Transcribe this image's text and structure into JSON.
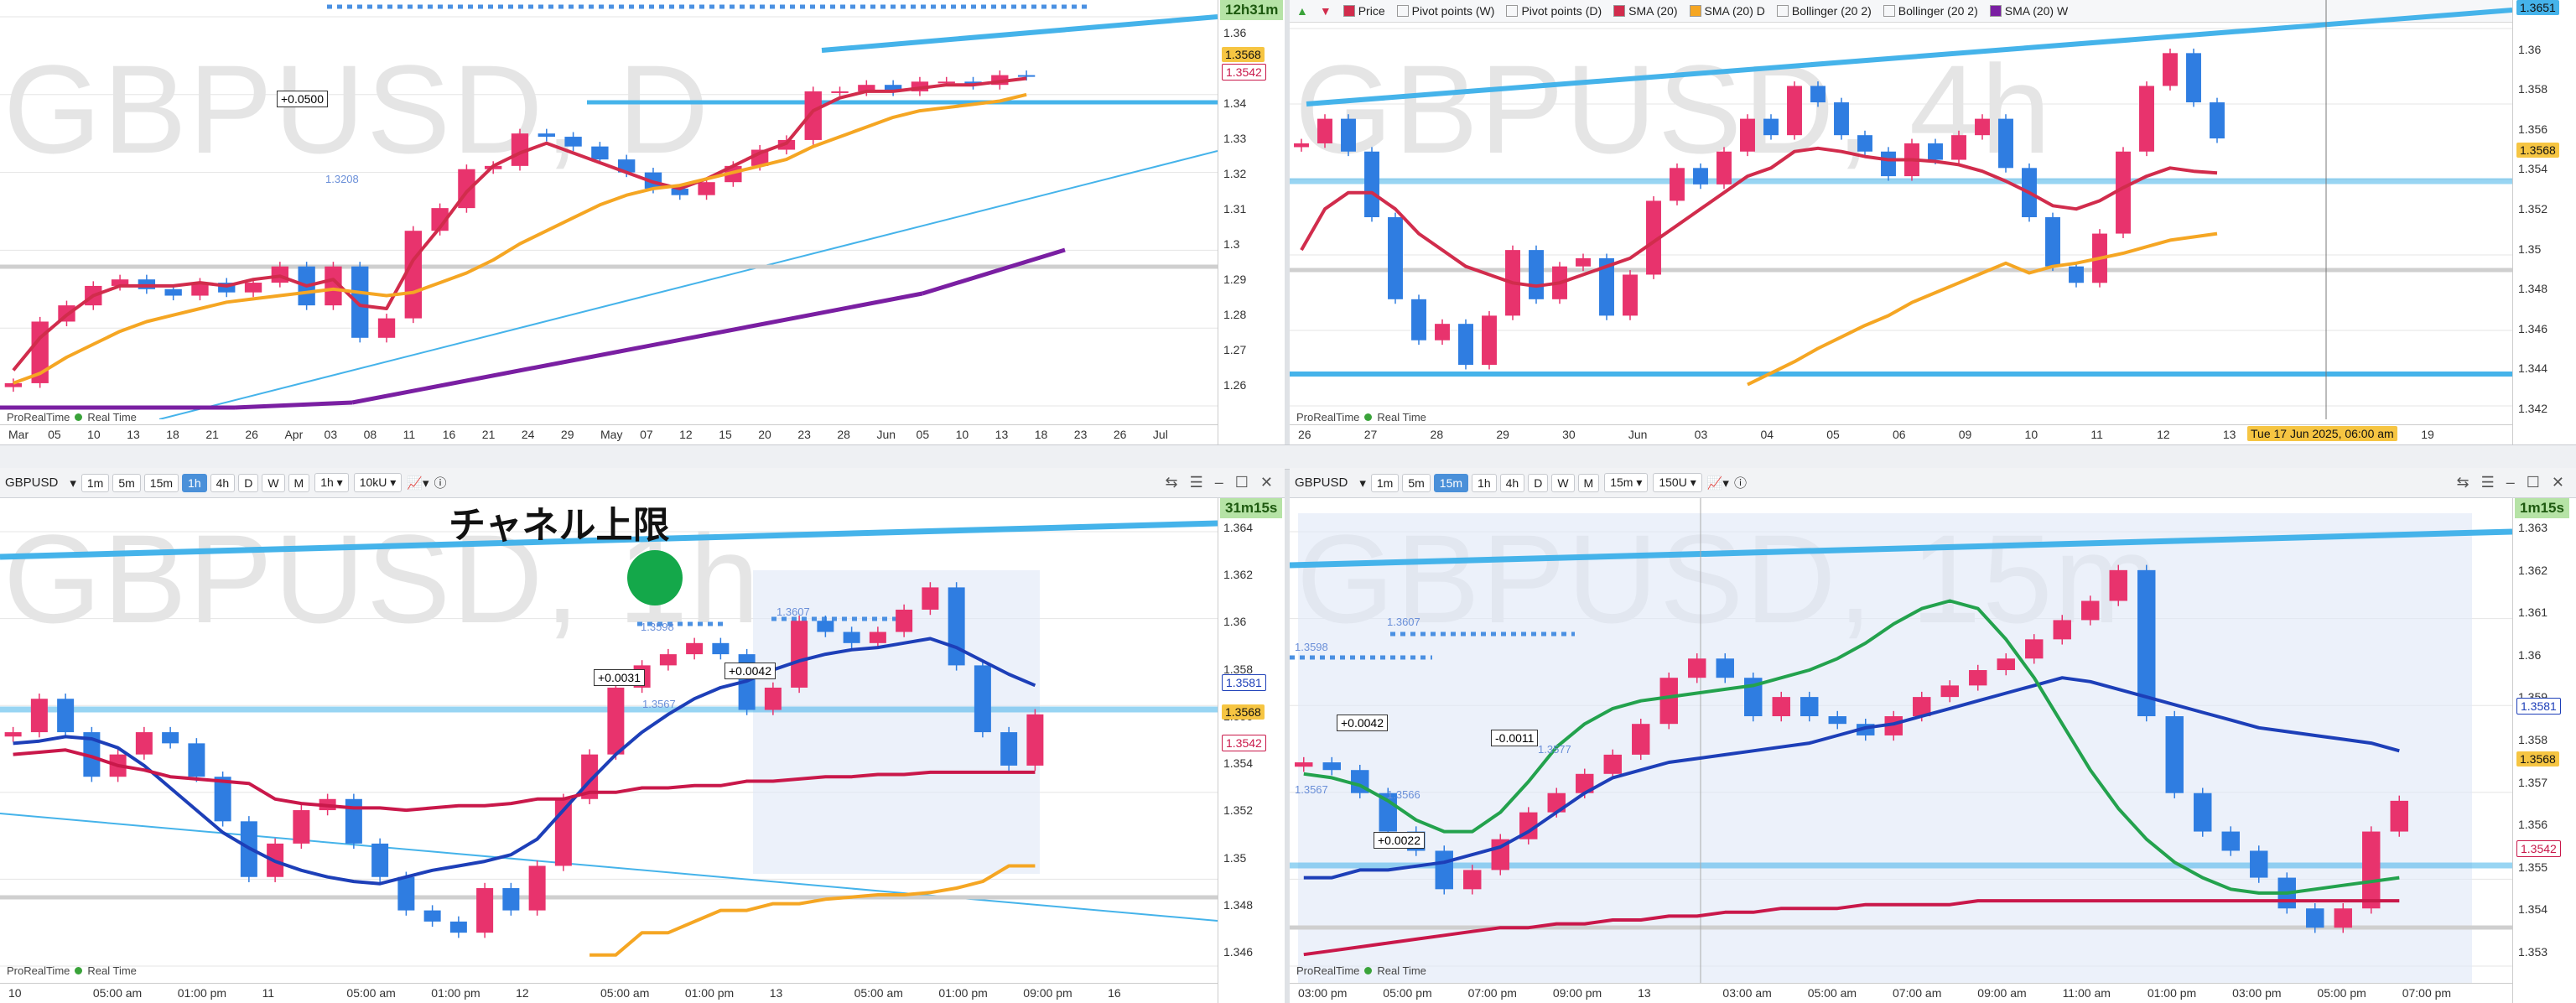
{
  "colors": {
    "up": "#e8336d",
    "down": "#2f7de1",
    "sma_red": "#d12c4c",
    "sma_orange": "#f5a623",
    "purple": "#7a1fa2",
    "trend": "#45b3ea",
    "navy": "#1d3fb8",
    "green": "#23a24d",
    "crimson": "#c9184a"
  },
  "panels": {
    "tl": {
      "watermark": "GBPUSD, D",
      "timer": "12h31m",
      "price_badges": [
        "1.3568",
        "1.3542"
      ],
      "yticks": [
        "1.36",
        "1.35",
        "1.34",
        "1.33",
        "1.32",
        "1.31",
        "1.3",
        "1.29",
        "1.28",
        "1.27",
        "1.26"
      ],
      "xticks": [
        "Mar",
        "05",
        "10",
        "13",
        "18",
        "21",
        "26",
        "Apr",
        "03",
        "08",
        "11",
        "16",
        "21",
        "24",
        "29",
        "May",
        "07",
        "12",
        "15",
        "20",
        "23",
        "28",
        "Jun",
        "05",
        "10",
        "13",
        "18",
        "23",
        "26",
        "Jul"
      ],
      "annotation": "+0.0500",
      "level_label": "1.3208",
      "footer": "ProRealTime",
      "footer_rt": "Real Time"
    },
    "tr": {
      "watermark": "GBPUSD, 4h",
      "legend": [
        "Price",
        "Pivot points (W)",
        "Pivot points (D)",
        "SMA (20)",
        "SMA (20) D",
        "Bollinger (20 2)",
        "Bollinger (20 2)",
        "SMA (20) W"
      ],
      "price_badges": [
        "1.3651",
        "1.3568"
      ],
      "yticks": [
        "1.362",
        "1.36",
        "1.358",
        "1.356",
        "1.354",
        "1.352",
        "1.35",
        "1.348",
        "1.346",
        "1.344",
        "1.342"
      ],
      "xticks": [
        "26",
        "27",
        "28",
        "29",
        "30",
        "Jun",
        "03",
        "04",
        "05",
        "06",
        "09",
        "10",
        "11",
        "12",
        "13",
        "17",
        "18",
        "19"
      ],
      "cursor_label": "Tue 17 Jun 2025, 06:00 am",
      "footer": "ProRealTime",
      "footer_rt": "Real Time"
    },
    "bl": {
      "symbol": "GBPUSD",
      "timeframes": [
        "1m",
        "5m",
        "15m",
        "1h",
        "4h",
        "D",
        "W",
        "M"
      ],
      "active_tf": "1h",
      "tf_select": "1h",
      "units_select": "10kU",
      "watermark": "GBPUSD, 1h",
      "timer": "31m15s",
      "price_badges": [
        "1.3581",
        "1.3568",
        "1.3542"
      ],
      "yticks": [
        "1.364",
        "1.362",
        "1.36",
        "1.358",
        "1.356",
        "1.354",
        "1.352",
        "1.35",
        "1.348",
        "1.346"
      ],
      "xticks": [
        "10",
        "05:00 am",
        "01:00 pm",
        "11",
        "05:00 am",
        "01:00 pm",
        "12",
        "05:00 am",
        "01:00 pm",
        "13",
        "05:00 am",
        "01:00 pm",
        "09:00 pm",
        "16"
      ],
      "annotations": [
        "+0.0031",
        "+0.0042"
      ],
      "level_labels": [
        "1.3607",
        "1.3598",
        "1.3567"
      ],
      "jp_label": "チャネル上限",
      "footer": "ProRealTime",
      "footer_rt": "Real Time"
    },
    "br": {
      "symbol": "GBPUSD",
      "timeframes": [
        "1m",
        "5m",
        "15m",
        "1h",
        "4h",
        "D",
        "W",
        "M"
      ],
      "active_tf": "15m",
      "tf_select": "15m",
      "units_select": "150U",
      "watermark": "GBPUSD, 15m",
      "timer": "1m15s",
      "price_badges": [
        "1.3581",
        "1.3568",
        "1.3542"
      ],
      "yticks": [
        "1.363",
        "1.362",
        "1.361",
        "1.36",
        "1.359",
        "1.358",
        "1.357",
        "1.356",
        "1.355",
        "1.354",
        "1.353"
      ],
      "xticks": [
        "03:00 pm",
        "05:00 pm",
        "07:00 pm",
        "09:00 pm",
        "13",
        "03:00 am",
        "05:00 am",
        "07:00 am",
        "09:00 am",
        "11:00 am",
        "01:00 pm",
        "03:00 pm",
        "05:00 pm",
        "07:00 pm"
      ],
      "annotations": [
        "+0.0042",
        "-0.0011",
        "+0.0022"
      ],
      "level_labels": [
        "1.3607",
        "1.3598",
        "1.3567",
        "1.3566",
        "1.3577"
      ],
      "footer": "ProRealTime",
      "footer_rt": "Real Time"
    }
  },
  "chart_data": [
    {
      "type": "candlestick",
      "title": "GBPUSD, D",
      "ylim": [
        1.255,
        1.375
      ],
      "close_path": [
        1.262,
        1.281,
        1.286,
        1.292,
        1.294,
        1.291,
        1.289,
        1.293,
        1.29,
        1.293,
        1.298,
        1.286,
        1.298,
        1.276,
        1.282,
        1.309,
        1.316,
        1.328,
        1.329,
        1.339,
        1.338,
        1.335,
        1.331,
        1.327,
        1.322,
        1.32,
        1.324,
        1.329,
        1.334,
        1.337,
        1.352,
        1.352,
        1.354,
        1.352,
        1.355,
        1.355,
        1.354,
        1.357,
        1.3568
      ],
      "series": [
        {
          "name": "SMA (20)",
          "values": [
            1.266,
            1.276,
            1.283,
            1.289,
            1.292,
            1.292,
            1.292,
            1.293,
            1.292,
            1.294,
            1.295,
            1.292,
            1.294,
            1.286,
            1.285,
            1.3,
            1.31,
            1.321,
            1.329,
            1.333,
            1.336,
            1.333,
            1.33,
            1.327,
            1.324,
            1.322,
            1.325,
            1.329,
            1.333,
            1.336,
            1.346,
            1.35,
            1.352,
            1.352,
            1.353,
            1.354,
            1.354,
            1.355,
            1.356
          ]
        },
        {
          "name": "SMA (20) D",
          "values": [
            1.262,
            1.265,
            1.27,
            1.274,
            1.278,
            1.281,
            1.283,
            1.285,
            1.287,
            1.288,
            1.289,
            1.29,
            1.291,
            1.29,
            1.289,
            1.29,
            1.293,
            1.296,
            1.3,
            1.305,
            1.309,
            1.313,
            1.317,
            1.32,
            1.322,
            1.323,
            1.325,
            1.327,
            1.329,
            1.331,
            1.335,
            1.338,
            1.341,
            1.344,
            1.346,
            1.347,
            1.348,
            1.349,
            1.351
          ]
        }
      ]
    },
    {
      "type": "candlestick",
      "title": "GBPUSD, 4h",
      "ylim": [
        1.3405,
        1.3635
      ],
      "close_path": [
        1.3565,
        1.358,
        1.356,
        1.352,
        1.347,
        1.3445,
        1.3455,
        1.343,
        1.346,
        1.35,
        1.347,
        1.349,
        1.3495,
        1.346,
        1.3485,
        1.353,
        1.355,
        1.354,
        1.356,
        1.358,
        1.357,
        1.36,
        1.359,
        1.357,
        1.356,
        1.3545,
        1.3565,
        1.3555,
        1.357,
        1.358,
        1.355,
        1.352,
        1.349,
        1.348,
        1.351,
        1.356,
        1.36,
        1.362,
        1.359,
        1.3568
      ],
      "series": [
        {
          "name": "SMA (20)",
          "values": [
            1.35,
            1.3525,
            1.3535,
            1.3535,
            1.3525,
            1.351,
            1.35,
            1.349,
            1.3485,
            1.348,
            1.3478,
            1.348,
            1.3485,
            1.349,
            1.3495,
            1.3505,
            1.3515,
            1.3525,
            1.3535,
            1.3545,
            1.355,
            1.356,
            1.3562,
            1.356,
            1.3557,
            1.3555,
            1.3555,
            1.3554,
            1.3552,
            1.3548,
            1.3542,
            1.3535,
            1.3527,
            1.3525,
            1.353,
            1.3538,
            1.3545,
            1.355,
            1.3548,
            1.3547
          ]
        },
        {
          "name": "SMA (20) W",
          "values": [
            null,
            null,
            null,
            null,
            null,
            null,
            null,
            null,
            null,
            null,
            null,
            null,
            null,
            null,
            null,
            null,
            null,
            null,
            null,
            1.3418,
            1.3425,
            1.3432,
            1.344,
            1.3447,
            1.3454,
            1.346,
            1.3468,
            1.3474,
            1.348,
            1.3486,
            1.3492,
            1.3486,
            1.349,
            1.3492,
            1.3495,
            1.3498,
            1.3502,
            1.3506,
            1.3508,
            1.351
          ]
        }
      ]
    },
    {
      "type": "candlestick",
      "title": "GBPUSD, 1h",
      "ylim": [
        1.3455,
        1.365
      ],
      "close_path": [
        1.356,
        1.3575,
        1.356,
        1.354,
        1.355,
        1.356,
        1.3555,
        1.354,
        1.352,
        1.3495,
        1.351,
        1.3525,
        1.353,
        1.351,
        1.3495,
        1.348,
        1.3475,
        1.347,
        1.349,
        1.348,
        1.35,
        1.353,
        1.355,
        1.358,
        1.359,
        1.3595,
        1.36,
        1.3595,
        1.357,
        1.358,
        1.361,
        1.3605,
        1.36,
        1.3605,
        1.3615,
        1.3625,
        1.359,
        1.356,
        1.3545,
        1.3568
      ],
      "series": [
        {
          "name": "SMA (20)",
          "values": [
            1.3555,
            1.3556,
            1.3558,
            1.3557,
            1.3553,
            1.3545,
            1.3535,
            1.3525,
            1.3515,
            1.3508,
            1.3502,
            1.3498,
            1.3495,
            1.3493,
            1.3492,
            1.3495,
            1.3498,
            1.35,
            1.3502,
            1.3505,
            1.3512,
            1.3525,
            1.3538,
            1.355,
            1.356,
            1.3568,
            1.3575,
            1.358,
            1.3583,
            1.3588,
            1.3592,
            1.3595,
            1.3597,
            1.3598,
            1.36,
            1.3602,
            1.3598,
            1.3592,
            1.3586,
            1.3581
          ]
        },
        {
          "name": "SMA (20) D",
          "values": [
            1.355,
            1.3551,
            1.3552,
            1.3549,
            1.3545,
            1.3543,
            1.354,
            1.3539,
            1.3538,
            1.3537,
            1.353,
            1.3528,
            1.3527,
            1.3526,
            1.3526,
            1.3525,
            1.3526,
            1.3527,
            1.3527,
            1.3528,
            1.353,
            1.353,
            1.3533,
            1.3533,
            1.3535,
            1.3535,
            1.3536,
            1.3536,
            1.3538,
            1.3538,
            1.3539,
            1.354,
            1.354,
            1.3541,
            1.3541,
            1.3542,
            1.3542,
            1.3542,
            1.3542,
            1.3542
          ]
        },
        {
          "name": "SMA (20) W",
          "values": [
            null,
            null,
            null,
            null,
            null,
            null,
            null,
            null,
            null,
            null,
            null,
            null,
            null,
            null,
            null,
            null,
            null,
            null,
            null,
            null,
            null,
            null,
            1.346,
            1.346,
            1.347,
            1.347,
            1.3475,
            1.348,
            1.348,
            1.3483,
            1.3483,
            1.3485,
            1.3486,
            1.3487,
            1.3487,
            1.3488,
            1.349,
            1.3493,
            1.35,
            1.35
          ]
        }
      ]
    },
    {
      "type": "candlestick",
      "title": "GBPUSD, 15m",
      "ylim": [
        1.3525,
        1.3638
      ],
      "close_path": [
        1.3578,
        1.3576,
        1.357,
        1.356,
        1.3555,
        1.3545,
        1.355,
        1.3558,
        1.3565,
        1.357,
        1.3575,
        1.358,
        1.3588,
        1.36,
        1.3605,
        1.36,
        1.359,
        1.3595,
        1.359,
        1.3588,
        1.3585,
        1.359,
        1.3595,
        1.3598,
        1.3602,
        1.3605,
        1.361,
        1.3615,
        1.362,
        1.3628,
        1.359,
        1.357,
        1.356,
        1.3555,
        1.3548,
        1.354,
        1.3535,
        1.354,
        1.356,
        1.3568
      ],
      "series": [
        {
          "name": "SMA (20) 1h",
          "values": [
            1.3548,
            1.3548,
            1.355,
            1.355,
            1.3551,
            1.3552,
            1.3554,
            1.3556,
            1.356,
            1.3565,
            1.357,
            1.3574,
            1.3576,
            1.3578,
            1.3579,
            1.358,
            1.3581,
            1.3582,
            1.3583,
            1.3585,
            1.3587,
            1.3588,
            1.359,
            1.3592,
            1.3594,
            1.3596,
            1.3598,
            1.36,
            1.3599,
            1.3597,
            1.3595,
            1.3593,
            1.3591,
            1.3589,
            1.3587,
            1.3586,
            1.3585,
            1.3584,
            1.3583,
            1.3581
          ]
        },
        {
          "name": "SMA (20)",
          "values": [
            1.3575,
            1.3574,
            1.3572,
            1.3568,
            1.3563,
            1.356,
            1.356,
            1.3565,
            1.3573,
            1.3582,
            1.3588,
            1.3592,
            1.3594,
            1.3595,
            1.3596,
            1.3597,
            1.3598,
            1.36,
            1.3602,
            1.3605,
            1.3609,
            1.3614,
            1.3618,
            1.362,
            1.3618,
            1.361,
            1.36,
            1.3588,
            1.3576,
            1.3566,
            1.3558,
            1.3552,
            1.3548,
            1.3545,
            1.3544,
            1.3544,
            1.3545,
            1.3546,
            1.3547,
            1.3548
          ]
        },
        {
          "name": "SMA (20) D",
          "values": [
            1.3528,
            1.3529,
            1.353,
            1.3531,
            1.3532,
            1.3533,
            1.3534,
            1.3535,
            1.3535,
            1.3536,
            1.3536,
            1.3537,
            1.3537,
            1.3538,
            1.3538,
            1.3539,
            1.3539,
            1.354,
            1.354,
            1.354,
            1.3541,
            1.3541,
            1.3541,
            1.3541,
            1.3542,
            1.3542,
            1.3542,
            1.3542,
            1.3542,
            1.3542,
            1.3542,
            1.3542,
            1.3542,
            1.3542,
            1.3542,
            1.3542,
            1.3542,
            1.3542,
            1.3542,
            1.3542
          ]
        }
      ]
    }
  ]
}
